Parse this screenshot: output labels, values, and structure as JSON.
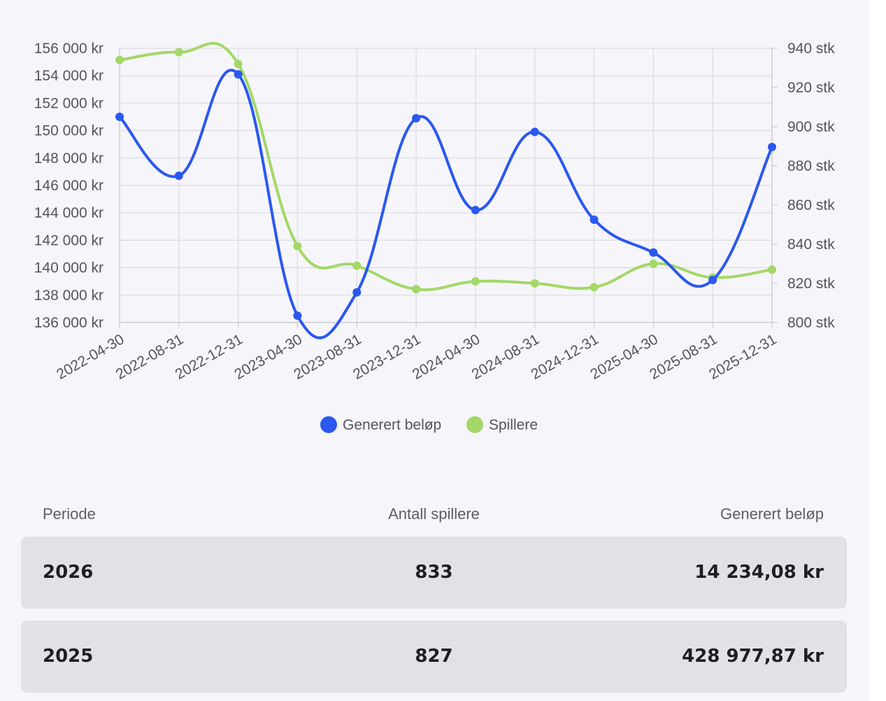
{
  "chart_data": {
    "type": "line",
    "x": [
      "2022-04-30",
      "2022-08-31",
      "2022-12-31",
      "2023-04-30",
      "2023-08-31",
      "2023-12-31",
      "2024-04-30",
      "2024-08-31",
      "2024-12-31",
      "2025-04-30",
      "2025-08-31",
      "2025-12-31"
    ],
    "series": [
      {
        "name": "Generert beløp",
        "axis": "left",
        "color": "#2a58f0",
        "values": [
          151000,
          146700,
          154100,
          136500,
          138200,
          150900,
          144200,
          149900,
          143500,
          141100,
          139100,
          148800
        ]
      },
      {
        "name": "Spillere",
        "axis": "right",
        "color": "#a3d868",
        "values": [
          934,
          938,
          932,
          839,
          829,
          817,
          821,
          820,
          818,
          830,
          823,
          827
        ]
      }
    ],
    "y_left": {
      "range": [
        136000,
        156000
      ],
      "ticks": [
        "156 000 kr",
        "154 000 kr",
        "152 000 kr",
        "150 000 kr",
        "148 000 kr",
        "146 000 kr",
        "144 000 kr",
        "142 000 kr",
        "140 000 kr",
        "138 000 kr",
        "136 000 kr"
      ]
    },
    "y_right": {
      "range": [
        800,
        940
      ],
      "ticks": [
        "940 stk",
        "920 stk",
        "900 stk",
        "880 stk",
        "860 stk",
        "840 stk",
        "820 stk",
        "800 stk"
      ]
    },
    "grid": true,
    "legend_position": "bottom"
  },
  "table": {
    "headers": {
      "period": "Periode",
      "players": "Antall spillere",
      "amount": "Generert beløp"
    },
    "rows": [
      {
        "period": "2026",
        "players": "833",
        "amount": "14 234,08 kr"
      },
      {
        "period": "2025",
        "players": "827",
        "amount": "428 977,87 kr"
      }
    ]
  }
}
